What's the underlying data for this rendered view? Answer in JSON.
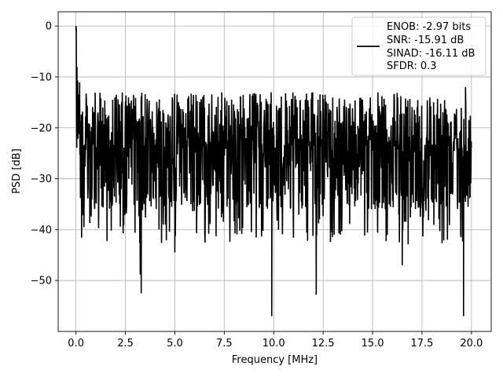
{
  "chart_data": {
    "type": "line",
    "xlabel": "Frequency [MHz]",
    "ylabel": "PSD [dB]",
    "xlim": [
      -0.9,
      21.0
    ],
    "ylim": [
      -60.0,
      2.8
    ],
    "x_ticks": [
      0.0,
      2.5,
      5.0,
      7.5,
      10.0,
      12.5,
      15.0,
      17.5,
      20.0
    ],
    "x_tick_labels": [
      "0.0",
      "2.5",
      "5.0",
      "7.5",
      "10.0",
      "12.5",
      "15.0",
      "17.5",
      "20.0"
    ],
    "y_ticks": [
      0,
      -10,
      -20,
      -30,
      -40,
      -50
    ],
    "y_tick_labels": [
      "0",
      "−10",
      "−20",
      "−30",
      "−40",
      "−50"
    ],
    "grid": true,
    "legend_position": "top-right",
    "series": [
      {
        "color": "#000000",
        "x_range": [
          0.0,
          20.0
        ],
        "description": "noise-like PSD trace: peak 0 dB near DC, noise floor ~-12 to -40 dB with dips to ~-57 dB",
        "notable_points": [
          {
            "x": 0.0,
            "y": 0.0
          },
          {
            "x": 0.05,
            "y": -8.0
          },
          {
            "x": 0.1,
            "y": -20.0
          },
          {
            "x": 0.4,
            "y": -39.5
          },
          {
            "x": 3.25,
            "y": -48.8
          },
          {
            "x": 3.3,
            "y": -52.5
          },
          {
            "x": 5.0,
            "y": -44.5
          },
          {
            "x": 9.9,
            "y": -57.0
          },
          {
            "x": 12.15,
            "y": -52.8
          },
          {
            "x": 16.5,
            "y": -47.0
          },
          {
            "x": 19.6,
            "y": -57.0
          },
          {
            "x": 19.7,
            "y": -12.0
          }
        ]
      }
    ],
    "legend": {
      "lines": [
        "ENOB: -2.97 bits",
        "SNR: -15.91 dB",
        "SINAD: -16.11 dB",
        "SFDR: 0.3"
      ]
    }
  }
}
